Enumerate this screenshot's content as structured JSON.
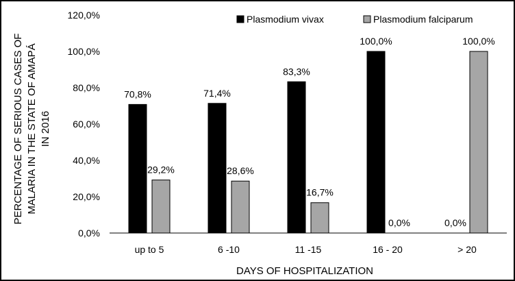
{
  "chart_data": {
    "type": "bar",
    "categories": [
      "up to 5",
      "6 -10",
      "11 -15",
      "16 - 20",
      "> 20"
    ],
    "series": [
      {
        "name": "Plasmodium vivax",
        "values": [
          70.8,
          71.4,
          83.3,
          100.0,
          0.0
        ],
        "labels": [
          "70,8%",
          "71,4%",
          "83,3%",
          "100,0%",
          "0,0%"
        ],
        "color": "#000000"
      },
      {
        "name": "Plasmodium falciparum",
        "values": [
          29.2,
          28.6,
          16.7,
          0.0,
          100.0
        ],
        "labels": [
          "29,2%",
          "28,6%",
          "16,7%",
          "0,0%",
          "100,0%"
        ],
        "color": "#a6a6a6"
      }
    ],
    "xlabel": "DAYS OF HOSPITALIZATION",
    "ylabel_lines": [
      "PERCENTAGE OF SERIOUS CASES OF",
      "MALARIA IN THE STATE OF AMAPÁ",
      "IN 2016"
    ],
    "ylim": [
      0,
      120
    ],
    "yticks": [
      0,
      20,
      40,
      60,
      80,
      100,
      120
    ],
    "ytick_labels": [
      "0,0%",
      "20,0%",
      "40,0%",
      "60,0%",
      "80,0%",
      "100,0%",
      "120,0%"
    ],
    "grid": false,
    "legend_position": "top-right"
  }
}
